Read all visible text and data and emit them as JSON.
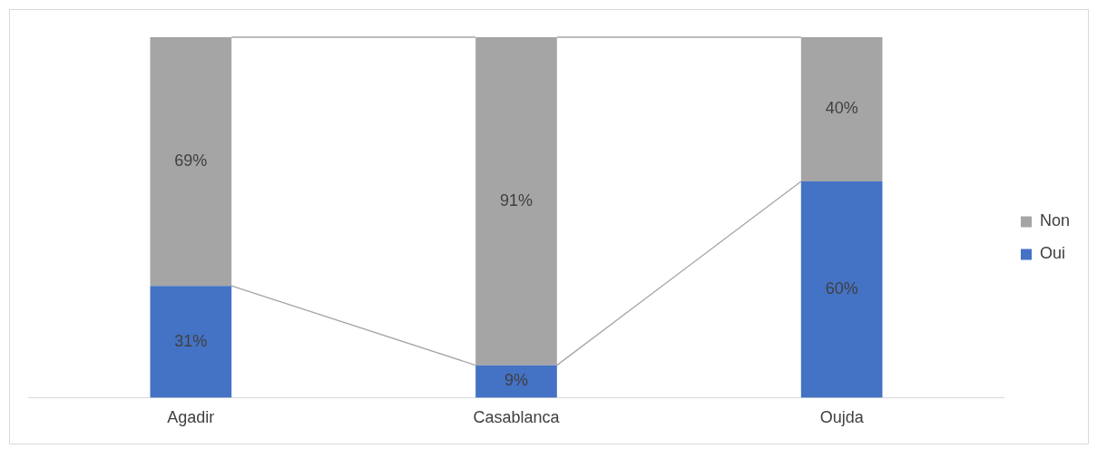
{
  "chart_data": {
    "type": "bar",
    "stacked": true,
    "categories": [
      "Agadir",
      "Casablanca",
      "Oujda"
    ],
    "series": [
      {
        "name": "Oui",
        "color": "#4472c4",
        "values": [
          31,
          9,
          60
        ],
        "value_labels": [
          "31%",
          "9%",
          "60%"
        ]
      },
      {
        "name": "Non",
        "color": "#a5a5a5",
        "values": [
          69,
          91,
          40
        ],
        "value_labels": [
          "69%",
          "91%",
          "40%"
        ]
      }
    ],
    "legend": "right",
    "grid": false
  }
}
